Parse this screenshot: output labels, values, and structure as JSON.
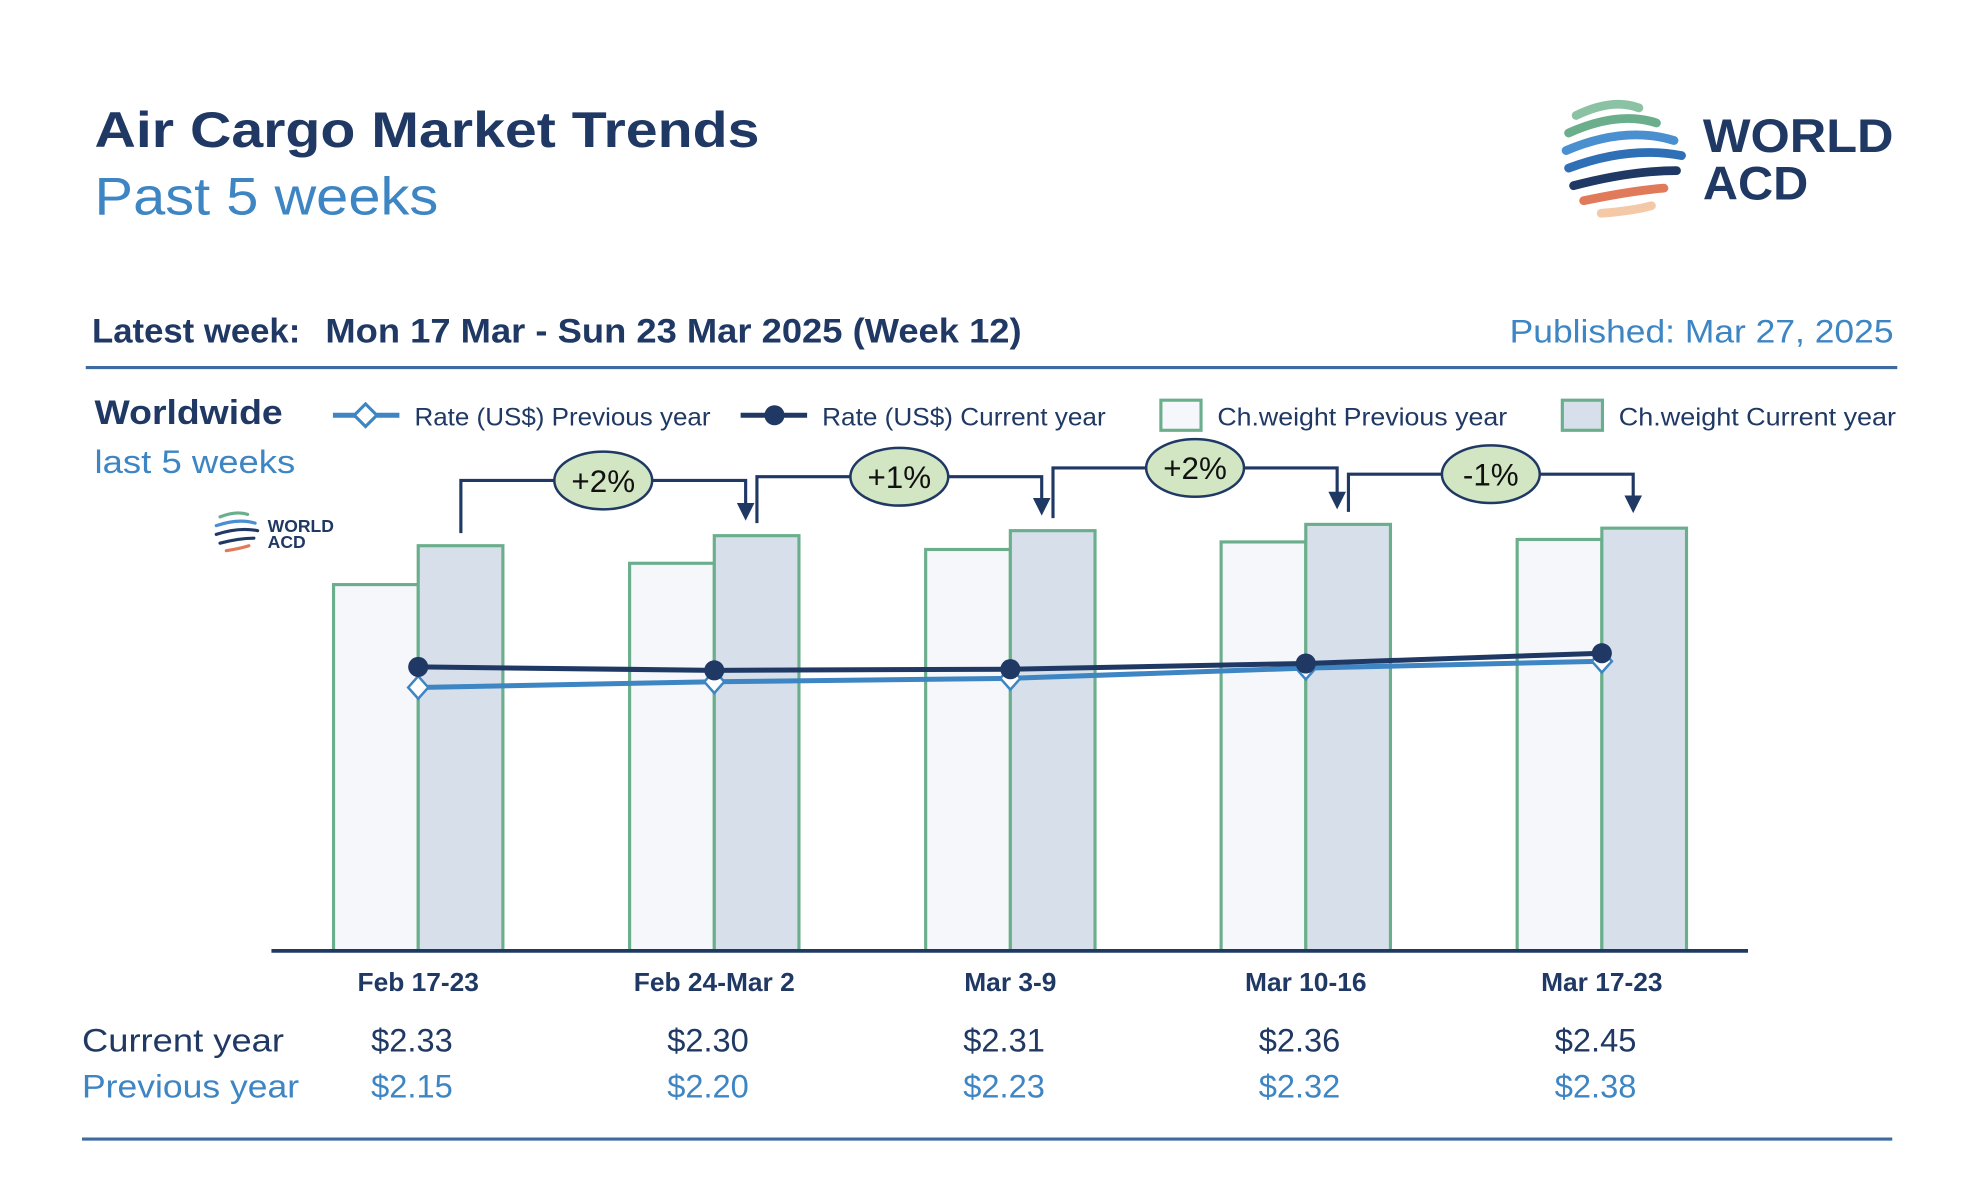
{
  "header": {
    "title": "Air Cargo Market Trends",
    "subtitle": "Past 5 weeks",
    "logo_text_line1": "WORLD",
    "logo_text_line2": "ACD"
  },
  "info": {
    "latest_week_label": "Latest week:",
    "latest_week_value": "Mon 17 Mar - Sun 23 Mar 2025 (Week 12)",
    "published": "Published: Mar 27, 2025"
  },
  "region": {
    "name": "Worldwide",
    "period": "last 5 weeks"
  },
  "colors": {
    "navy": "#1f3864",
    "accent_blue": "#3d85c3",
    "bar_stroke": "#6aae8c",
    "bar_current_fill": "#d6dfea",
    "bar_previous_fill": "#f6f7fa",
    "bubble_fill": "#d3e6c3"
  },
  "chart_data": {
    "type": "bar",
    "title": "Worldwide last 5 weeks",
    "categories": [
      "Feb 17-23",
      "Feb 24-Mar 2",
      "Mar 3-9",
      "Mar 10-16",
      "Mar 17-23"
    ],
    "legend": [
      {
        "label": "Rate (US$) Previous year",
        "kind": "line-diamond"
      },
      {
        "label": "Rate (US$) Current year",
        "kind": "line-dot"
      },
      {
        "label": "Ch.weight Previous year",
        "kind": "bar"
      },
      {
        "label": "Ch.weight Current year",
        "kind": "bar"
      }
    ],
    "legend_position": "top",
    "bar_series": [
      {
        "name": "Ch.weight Previous year",
        "values": [
          292,
          309,
          320,
          326,
          328
        ],
        "unit": "relative index (no axis shown)"
      },
      {
        "name": "Ch.weight Current year",
        "values": [
          323,
          331,
          335,
          340,
          337
        ],
        "unit": "relative index (no axis shown)"
      }
    ],
    "line_series": [
      {
        "name": "Rate (US$) Previous year",
        "values": [
          2.15,
          2.2,
          2.23,
          2.32,
          2.38
        ]
      },
      {
        "name": "Rate (US$) Current year",
        "values": [
          2.33,
          2.3,
          2.31,
          2.36,
          2.45
        ]
      }
    ],
    "week_over_week_weight_change": [
      "+2%",
      "+1%",
      "+2%",
      "-1%"
    ],
    "grid": false
  },
  "table": {
    "current_label": "Current year",
    "previous_label": "Previous year",
    "current": [
      "$2.33",
      "$2.30",
      "$2.31",
      "$2.36",
      "$2.45"
    ],
    "previous": [
      "$2.15",
      "$2.20",
      "$2.23",
      "$2.32",
      "$2.38"
    ]
  }
}
